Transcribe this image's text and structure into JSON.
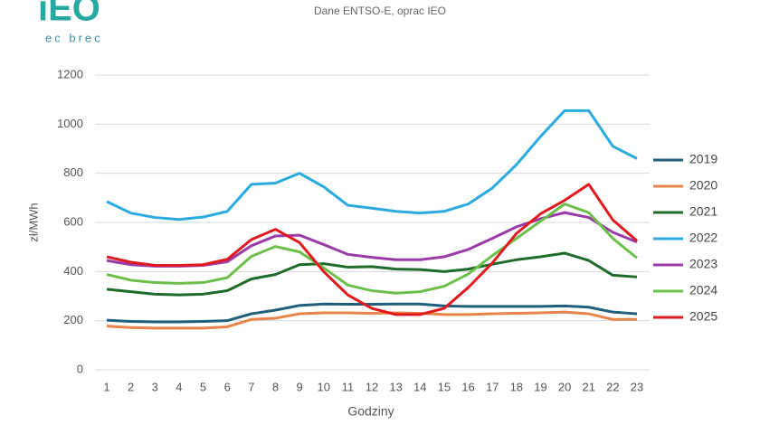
{
  "logo": {
    "mark": "iEO",
    "tagline": "ec brec"
  },
  "chart_data": {
    "type": "line",
    "subtitle": "Dane ENTSO-E, oprac IEO",
    "x_label": "Godziny",
    "y_label": "zł/MWh",
    "categories": [
      "1",
      "2",
      "3",
      "4",
      "5",
      "6",
      "7",
      "8",
      "9",
      "10",
      "11",
      "12",
      "13",
      "14",
      "15",
      "16",
      "17",
      "18",
      "19",
      "20",
      "21",
      "22",
      "23"
    ],
    "ylim": [
      0,
      1200
    ],
    "yticks": [
      0,
      200,
      400,
      600,
      800,
      1000,
      1200
    ],
    "grid": true,
    "legend": "right",
    "series": [
      {
        "name": "2019",
        "color": "#1f5f7a",
        "values": [
          202,
          197,
          195,
          195,
          197,
          200,
          228,
          243,
          262,
          268,
          267,
          267,
          268,
          268,
          260,
          258,
          258,
          258,
          258,
          260,
          255,
          235,
          228
        ]
      },
      {
        "name": "2020",
        "color": "#e8834a",
        "values": [
          178,
          172,
          170,
          170,
          170,
          175,
          205,
          210,
          228,
          232,
          232,
          230,
          232,
          230,
          225,
          225,
          228,
          230,
          232,
          235,
          228,
          205,
          205
        ]
      },
      {
        "name": "2021",
        "color": "#1f6b2a",
        "values": [
          328,
          318,
          308,
          305,
          308,
          322,
          370,
          388,
          428,
          432,
          418,
          420,
          410,
          408,
          400,
          410,
          430,
          448,
          460,
          475,
          445,
          385,
          378
        ]
      },
      {
        "name": "2022",
        "color": "#2aaae0",
        "values": [
          685,
          638,
          620,
          612,
          622,
          645,
          755,
          760,
          800,
          745,
          670,
          658,
          645,
          638,
          645,
          675,
          740,
          835,
          950,
          1055,
          1055,
          910,
          860
        ]
      },
      {
        "name": "2023",
        "color": "#9b3ba8",
        "values": [
          445,
          428,
          422,
          422,
          425,
          440,
          505,
          545,
          548,
          510,
          470,
          458,
          448,
          448,
          460,
          490,
          535,
          582,
          615,
          640,
          620,
          560,
          520
        ]
      },
      {
        "name": "2024",
        "color": "#6cbf4a",
        "values": [
          388,
          365,
          355,
          352,
          355,
          375,
          462,
          502,
          480,
          415,
          345,
          322,
          312,
          318,
          340,
          390,
          465,
          535,
          605,
          675,
          640,
          535,
          455
        ]
      },
      {
        "name": "2025",
        "color": "#e0191f",
        "values": [
          460,
          438,
          425,
          425,
          428,
          450,
          530,
          572,
          518,
          400,
          305,
          250,
          225,
          225,
          250,
          335,
          435,
          555,
          635,
          690,
          755,
          610,
          525
        ]
      }
    ]
  }
}
